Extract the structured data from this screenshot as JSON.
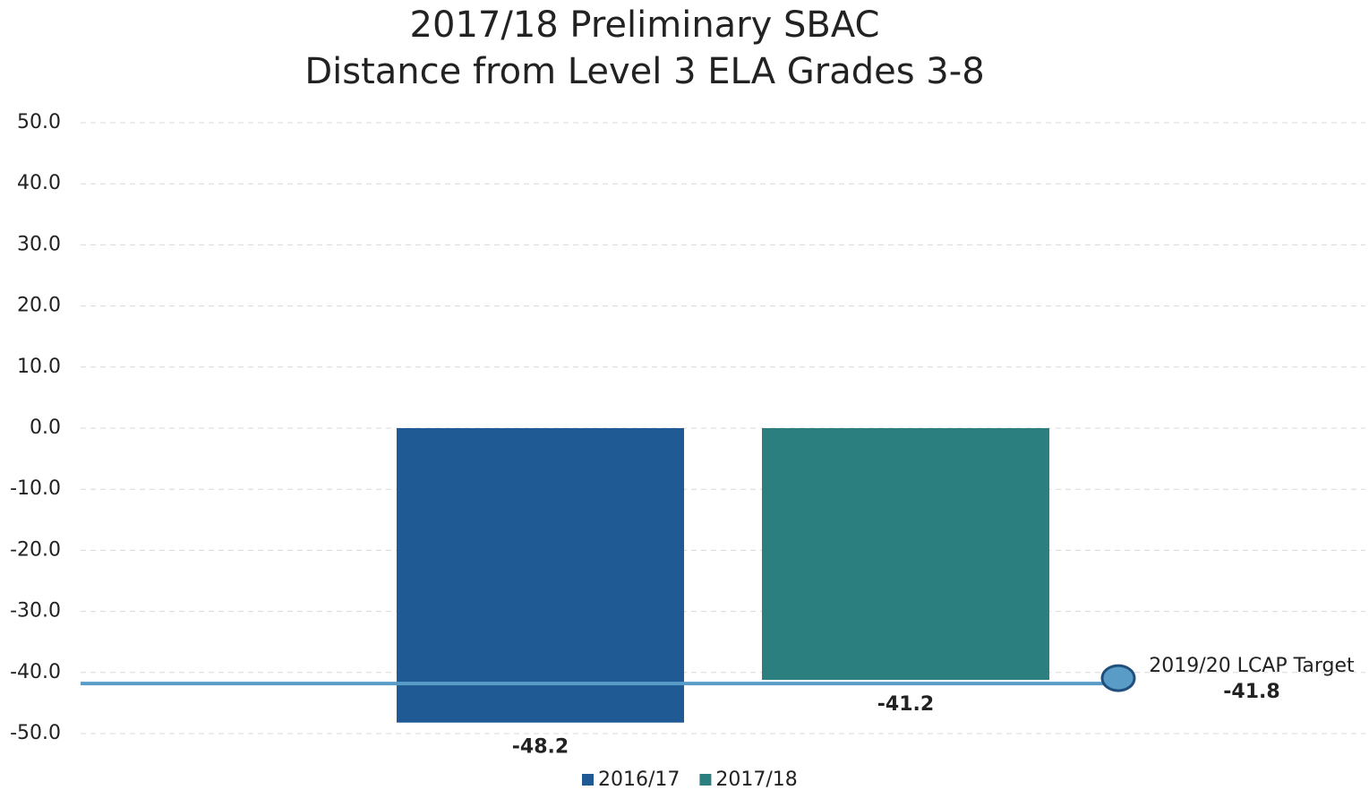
{
  "chart_data": {
    "type": "bar",
    "title": [
      "2017/18 Preliminary SBAC",
      "Distance from Level 3 ELA Grades 3-8"
    ],
    "categories": [
      null
    ],
    "series": [
      {
        "name": "2016/17",
        "color": "#1f5a94",
        "values": [
          -48.2
        ]
      },
      {
        "name": "2017/18",
        "color": "#2b7f7f",
        "values": [
          -41.2
        ]
      }
    ],
    "target": {
      "label": "2019/20 LCAP Target",
      "value": -41.8,
      "color": "#5a9cc8"
    },
    "ylim": [
      -50,
      50
    ],
    "yticks": [
      {
        "value": -50,
        "label": "-50.0"
      },
      {
        "value": -40,
        "label": "-40.0"
      },
      {
        "value": -30,
        "label": "-30.0"
      },
      {
        "value": -20,
        "label": "-20.0"
      },
      {
        "value": -10,
        "label": "-10.0"
      },
      {
        "value": 0,
        "label": "0.0"
      },
      {
        "value": 10,
        "label": "10.0"
      },
      {
        "value": 20,
        "label": "20.0"
      },
      {
        "value": 30,
        "label": "30.0"
      },
      {
        "value": 40,
        "label": "40.0"
      },
      {
        "value": 50,
        "label": "50.0"
      }
    ],
    "grid": true,
    "legend": "bottom"
  }
}
